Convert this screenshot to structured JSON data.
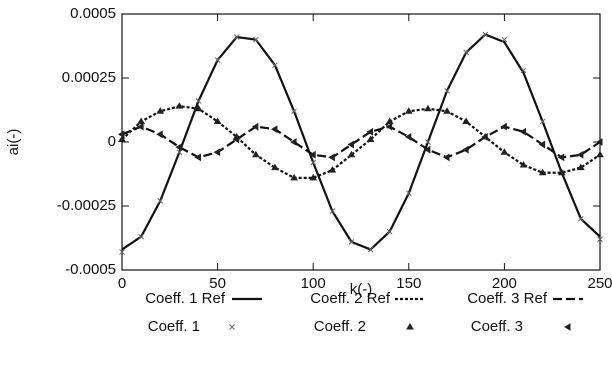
{
  "chart_data": {
    "type": "line",
    "xlabel": "k(-)",
    "ylabel": "ai(-)",
    "x": [
      0,
      10,
      20,
      30,
      40,
      50,
      60,
      70,
      80,
      90,
      100,
      110,
      120,
      130,
      140,
      150,
      160,
      170,
      180,
      190,
      200,
      210,
      220,
      230,
      240,
      250
    ],
    "xlim": [
      0,
      250
    ],
    "xticks": [
      0,
      50,
      100,
      150,
      200,
      250
    ],
    "ylim": [
      -0.0005,
      0.0005
    ],
    "yticks": [
      -0.0005,
      -0.00025,
      0,
      0.00025,
      0.0005
    ],
    "series": [
      {
        "name": "Coeff. 1 Ref",
        "color": "#111111",
        "style": "solid",
        "values": [
          -0.00042,
          -0.00037,
          -0.00023,
          -4e-05,
          0.00016,
          0.00032,
          0.00041,
          0.0004,
          0.0003,
          0.00012,
          -8e-05,
          -0.00027,
          -0.00039,
          -0.00042,
          -0.00035,
          -0.0002,
          0,
          0.0002,
          0.00035,
          0.00042,
          0.00039,
          0.00027,
          8e-05,
          -0.00012,
          -0.0003,
          -0.00037
        ]
      },
      {
        "name": "Coeff. 2 Ref",
        "color": "#111111",
        "style": "dotted",
        "values": [
          1e-05,
          8e-05,
          0.00012,
          0.00014,
          0.00013,
          8e-05,
          2e-05,
          -5e-05,
          -0.0001,
          -0.00014,
          -0.00014,
          -0.00011,
          -5e-05,
          1e-05,
          8e-05,
          0.00012,
          0.00013,
          0.00012,
          8e-05,
          2e-05,
          -4e-05,
          -9e-05,
          -0.00012,
          -0.00012,
          -0.0001,
          -5e-05
        ]
      },
      {
        "name": "Coeff. 3 Ref",
        "color": "#111111",
        "style": "dashed",
        "values": [
          3e-05,
          6e-05,
          3e-05,
          -2e-05,
          -6e-05,
          -4e-05,
          1e-05,
          6e-05,
          5e-05,
          0,
          -5e-05,
          -6e-05,
          -1e-05,
          4e-05,
          6e-05,
          2e-05,
          -3e-05,
          -6e-05,
          -3e-05,
          2e-05,
          6e-05,
          4e-05,
          -1e-05,
          -6e-05,
          -5e-05,
          0
        ]
      },
      {
        "name": "Coeff. 1",
        "color": "#666666",
        "style": "cross",
        "values": [
          -0.00043,
          -0.00037,
          -0.00023,
          -4e-05,
          0.00016,
          0.00032,
          0.00041,
          0.0004,
          0.0003,
          0.00012,
          -8e-05,
          -0.00027,
          -0.00039,
          -0.00042,
          -0.00035,
          -0.0002,
          0,
          0.0002,
          0.00035,
          0.00042,
          0.0004,
          0.00028,
          8e-05,
          -0.00012,
          -0.0003,
          -0.00038
        ]
      },
      {
        "name": "Coeff. 2",
        "color": "#222222",
        "style": "triangle",
        "values": [
          1e-05,
          8e-05,
          0.00012,
          0.00014,
          0.00013,
          8e-05,
          2e-05,
          -5e-05,
          -0.0001,
          -0.00014,
          -0.00014,
          -0.00011,
          -5e-05,
          1e-05,
          8e-05,
          0.00012,
          0.00013,
          0.00012,
          8e-05,
          2e-05,
          -4e-05,
          -9e-05,
          -0.00012,
          -0.00012,
          -0.0001,
          -5e-05
        ]
      },
      {
        "name": "Coeff. 3",
        "color": "#222222",
        "style": "left-triangle",
        "values": [
          3e-05,
          6e-05,
          3e-05,
          -2e-05,
          -6e-05,
          -4e-05,
          1e-05,
          6e-05,
          5e-05,
          0,
          -5e-05,
          -6e-05,
          -1e-05,
          4e-05,
          6e-05,
          2e-05,
          -3e-05,
          -6e-05,
          -3e-05,
          2e-05,
          6e-05,
          4e-05,
          -1e-05,
          -6e-05,
          -5e-05,
          0
        ]
      }
    ]
  }
}
